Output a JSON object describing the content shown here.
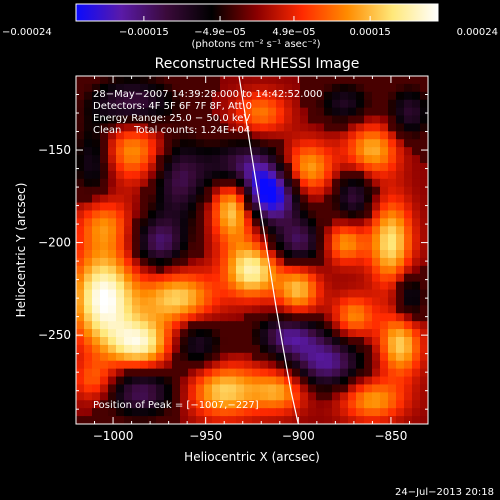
{
  "chart_data": {
    "type": "heatmap",
    "title": "Reconstructed RHESSI Image",
    "xlabel": "Heliocentric X (arcsec)",
    "ylabel": "Heliocentric Y (arcsec)",
    "xlim": [
      -1020,
      -830
    ],
    "ylim": [
      -298,
      -110
    ],
    "x_ticks": [
      -1000,
      -950,
      -900,
      -850
    ],
    "y_ticks": [
      -150,
      -200,
      -250
    ],
    "x_tick_labels": [
      "−1000",
      "−950",
      "−900",
      "−850"
    ],
    "y_tick_labels": [
      "−150",
      "−200",
      "−250"
    ],
    "colorbar": {
      "range": [
        -0.00024,
        0.00024
      ],
      "ticks": [
        -0.00024,
        -0.00015,
        -4.9e-05,
        4.9e-05,
        0.00015,
        0.00024
      ],
      "tick_labels": [
        "−0.00024",
        "−0.00015",
        "−4.9e−05",
        "4.9e−05",
        "0.00015",
        "0.00024"
      ],
      "unit_label": "(photons cm⁻² s⁻¹ asec⁻²)",
      "colormap": [
        "#0a0aff",
        "#5a1aa8",
        "#3a0a3a",
        "#000000",
        "#8b0000",
        "#ff2a00",
        "#ff8c00",
        "#ffe87a",
        "#ffffff"
      ]
    },
    "annotations": [
      "28−May−2007 14:39:28.000 to 14:42:52.000",
      "Detectors: 4F 5F 6F 7F 8F, Att 0",
      "Energy Range: 25.0 − 50.0 keV",
      "Clean    Total counts: 1.24E+04"
    ],
    "peak_label": "Position of Peak = [−1007,−227]",
    "peak_position": [
      -1007,
      -227
    ],
    "limb_curve": {
      "x": [
        -932,
        -928,
        -924,
        -920,
        -916,
        -912,
        -908,
        -904,
        -900
      ],
      "y": [
        -110,
        -135,
        -160,
        -185,
        -210,
        -235,
        -258,
        -280,
        -298
      ]
    },
    "blobs": [
      {
        "x": -1005,
        "y": -230,
        "sign": 1,
        "amp": 1.0,
        "sx": 12,
        "sy": 18
      },
      {
        "x": -985,
        "y": -255,
        "sign": 1,
        "amp": 0.85,
        "sx": 12,
        "sy": 10
      },
      {
        "x": -990,
        "y": -150,
        "sign": 1,
        "amp": 0.55,
        "sx": 14,
        "sy": 12
      },
      {
        "x": -1005,
        "y": -190,
        "sign": 1,
        "amp": 0.45,
        "sx": 10,
        "sy": 10
      },
      {
        "x": -965,
        "y": -230,
        "sign": 1,
        "amp": 0.7,
        "sx": 14,
        "sy": 10
      },
      {
        "x": -935,
        "y": -180,
        "sign": 1,
        "amp": 0.8,
        "sx": 8,
        "sy": 14
      },
      {
        "x": -925,
        "y": -215,
        "sign": 1,
        "amp": 0.85,
        "sx": 10,
        "sy": 10
      },
      {
        "x": -940,
        "y": -280,
        "sign": 1,
        "amp": 0.7,
        "sx": 14,
        "sy": 10
      },
      {
        "x": -895,
        "y": -160,
        "sign": 1,
        "amp": 0.6,
        "sx": 10,
        "sy": 10
      },
      {
        "x": -900,
        "y": -225,
        "sign": 1,
        "amp": 0.65,
        "sx": 8,
        "sy": 10
      },
      {
        "x": -875,
        "y": -200,
        "sign": 1,
        "amp": 0.55,
        "sx": 8,
        "sy": 8
      },
      {
        "x": -850,
        "y": -200,
        "sign": 1,
        "amp": 0.75,
        "sx": 8,
        "sy": 16
      },
      {
        "x": -845,
        "y": -255,
        "sign": 1,
        "amp": 0.7,
        "sx": 8,
        "sy": 12
      },
      {
        "x": -860,
        "y": -150,
        "sign": 1,
        "amp": 0.6,
        "sx": 10,
        "sy": 10
      },
      {
        "x": -860,
        "y": -285,
        "sign": 1,
        "amp": 0.55,
        "sx": 12,
        "sy": 8
      },
      {
        "x": -910,
        "y": -280,
        "sign": 1,
        "amp": 0.55,
        "sx": 10,
        "sy": 8
      },
      {
        "x": -870,
        "y": -240,
        "sign": 1,
        "amp": 0.5,
        "sx": 8,
        "sy": 8
      },
      {
        "x": -920,
        "y": -130,
        "sign": 1,
        "amp": 0.45,
        "sx": 10,
        "sy": 8
      },
      {
        "x": -1010,
        "y": -275,
        "sign": 1,
        "amp": 0.4,
        "sx": 8,
        "sy": 8
      },
      {
        "x": -915,
        "y": -175,
        "sign": -1,
        "amp": 1.0,
        "sx": 10,
        "sy": 10
      },
      {
        "x": -930,
        "y": -160,
        "sign": -1,
        "amp": 0.75,
        "sx": 14,
        "sy": 10
      },
      {
        "x": -900,
        "y": -200,
        "sign": -1,
        "amp": 0.6,
        "sx": 10,
        "sy": 10
      },
      {
        "x": -965,
        "y": -165,
        "sign": -1,
        "amp": 0.55,
        "sx": 10,
        "sy": 16
      },
      {
        "x": -975,
        "y": -200,
        "sign": -1,
        "amp": 0.6,
        "sx": 10,
        "sy": 10
      },
      {
        "x": -990,
        "y": -125,
        "sign": -1,
        "amp": 0.55,
        "sx": 16,
        "sy": 10
      },
      {
        "x": -1010,
        "y": -155,
        "sign": -1,
        "amp": 0.5,
        "sx": 8,
        "sy": 14
      },
      {
        "x": -985,
        "y": -280,
        "sign": -1,
        "amp": 0.6,
        "sx": 14,
        "sy": 10
      },
      {
        "x": -955,
        "y": -255,
        "sign": -1,
        "amp": 0.45,
        "sx": 10,
        "sy": 10
      },
      {
        "x": -905,
        "y": -250,
        "sign": -1,
        "amp": 0.65,
        "sx": 12,
        "sy": 8
      },
      {
        "x": -885,
        "y": -265,
        "sign": -1,
        "amp": 0.7,
        "sx": 14,
        "sy": 10
      },
      {
        "x": -870,
        "y": -175,
        "sign": -1,
        "amp": 0.5,
        "sx": 8,
        "sy": 10
      },
      {
        "x": -840,
        "y": -130,
        "sign": -1,
        "amp": 0.45,
        "sx": 8,
        "sy": 10
      },
      {
        "x": -840,
        "y": -230,
        "sign": -1,
        "amp": 0.45,
        "sx": 6,
        "sy": 10
      },
      {
        "x": -875,
        "y": -125,
        "sign": -1,
        "amp": 0.4,
        "sx": 10,
        "sy": 8
      }
    ]
  },
  "footer": {
    "date": "24−Jul−2013 20:18"
  }
}
